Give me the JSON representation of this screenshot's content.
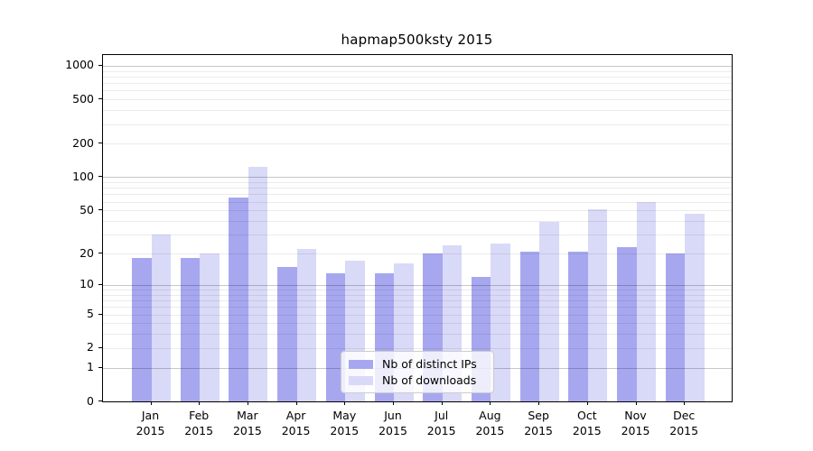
{
  "title": "hapmap500ksty 2015",
  "chart_data": {
    "type": "bar",
    "title": "hapmap500ksty 2015",
    "scale": "log10(1+y)",
    "ylim": [
      0,
      1250
    ],
    "grid": "on",
    "legend_position": "lower center (inside axes)",
    "categories": [
      "Jan",
      "Feb",
      "Mar",
      "Apr",
      "May",
      "Jun",
      "Jul",
      "Aug",
      "Sep",
      "Oct",
      "Nov",
      "Dec"
    ],
    "x_year_label": "2015",
    "y_ticks": [
      0,
      1,
      2,
      5,
      10,
      20,
      50,
      100,
      200,
      500,
      1000
    ],
    "y_major_gridlines": [
      1,
      10,
      100,
      1000
    ],
    "series": [
      {
        "name": "Nb of distinct IPs",
        "color": "#a7a7f0",
        "values": [
          18,
          18,
          65,
          15,
          13,
          13,
          20,
          12,
          21,
          21,
          23,
          20
        ]
      },
      {
        "name": "Nb of downloads",
        "color": "#d9d9f8",
        "values": [
          30,
          20,
          123,
          22,
          17,
          16,
          24,
          25,
          39,
          51,
          60,
          47
        ]
      }
    ]
  }
}
